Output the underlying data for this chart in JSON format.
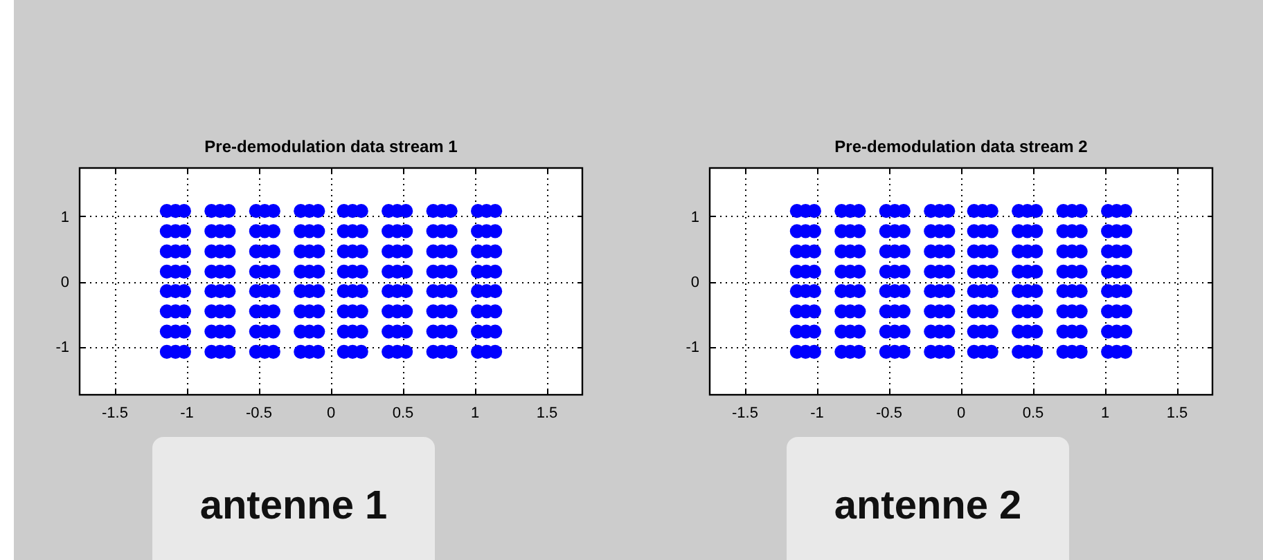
{
  "chart_data": [
    {
      "type": "scatter",
      "title": "Pre-demodulation data stream 1",
      "color": "#0000ff",
      "marker": "circle",
      "grid": true,
      "xlim": [
        -1.75,
        1.75
      ],
      "ylim": [
        -1.75,
        1.75
      ],
      "xticks": [
        -1.5,
        -1,
        -0.5,
        0,
        0.5,
        1,
        1.5
      ],
      "yticks": [
        -1,
        0,
        1
      ],
      "annotations": [
        "antenne 1"
      ],
      "x": [
        -1.14,
        -1.08,
        -1.02,
        -0.83,
        -0.77,
        -0.71,
        -0.52,
        -0.46,
        -0.4,
        -0.21,
        -0.15,
        -0.09,
        0.09,
        0.15,
        0.21,
        0.4,
        0.46,
        0.52,
        0.71,
        0.77,
        0.83,
        1.02,
        1.08,
        1.14,
        -1.14,
        -1.08,
        -1.02,
        -0.83,
        -0.77,
        -0.71,
        -0.52,
        -0.46,
        -0.4,
        -0.21,
        -0.15,
        -0.09,
        0.09,
        0.15,
        0.21,
        0.4,
        0.46,
        0.52,
        0.71,
        0.77,
        0.83,
        1.02,
        1.08,
        1.14,
        -1.14,
        -1.08,
        -1.02,
        -0.83,
        -0.77,
        -0.71,
        -0.52,
        -0.46,
        -0.4,
        -0.21,
        -0.15,
        -0.09,
        0.09,
        0.15,
        0.21,
        0.4,
        0.46,
        0.52,
        0.71,
        0.77,
        0.83,
        1.02,
        1.08,
        1.14,
        -1.14,
        -1.08,
        -1.02,
        -0.83,
        -0.77,
        -0.71,
        -0.52,
        -0.46,
        -0.4,
        -0.21,
        -0.15,
        -0.09,
        0.09,
        0.15,
        0.21,
        0.4,
        0.46,
        0.52,
        0.71,
        0.77,
        0.83,
        1.02,
        1.08,
        1.14,
        -1.14,
        -1.08,
        -1.02,
        -0.83,
        -0.77,
        -0.71,
        -0.52,
        -0.46,
        -0.4,
        -0.21,
        -0.15,
        -0.09,
        0.09,
        0.15,
        0.21,
        0.4,
        0.46,
        0.52,
        0.71,
        0.77,
        0.83,
        1.02,
        1.08,
        1.14,
        -1.14,
        -1.08,
        -1.02,
        -0.83,
        -0.77,
        -0.71,
        -0.52,
        -0.46,
        -0.4,
        -0.21,
        -0.15,
        -0.09,
        0.09,
        0.15,
        0.21,
        0.4,
        0.46,
        0.52,
        0.71,
        0.77,
        0.83,
        1.02,
        1.08,
        1.14,
        -1.14,
        -1.08,
        -1.02,
        -0.83,
        -0.77,
        -0.71,
        -0.52,
        -0.46,
        -0.4,
        -0.21,
        -0.15,
        -0.09,
        0.09,
        0.15,
        0.21,
        0.4,
        0.46,
        0.52,
        0.71,
        0.77,
        0.83,
        1.02,
        1.08,
        1.14,
        -1.14,
        -1.08,
        -1.02,
        -0.83,
        -0.77,
        -0.71,
        -0.52,
        -0.46,
        -0.4,
        -0.21,
        -0.15,
        -0.09,
        0.09,
        0.15,
        0.21,
        0.4,
        0.46,
        0.52,
        0.71,
        0.77,
        0.83,
        1.02,
        1.08,
        1.14
      ],
      "values": [
        1.08,
        1.08,
        1.08,
        1.08,
        1.08,
        1.08,
        1.08,
        1.08,
        1.08,
        1.08,
        1.08,
        1.08,
        1.08,
        1.08,
        1.08,
        1.08,
        1.08,
        1.08,
        1.08,
        1.08,
        1.08,
        1.08,
        1.08,
        1.08,
        0.77,
        0.77,
        0.77,
        0.77,
        0.77,
        0.77,
        0.77,
        0.77,
        0.77,
        0.77,
        0.77,
        0.77,
        0.77,
        0.77,
        0.77,
        0.77,
        0.77,
        0.77,
        0.77,
        0.77,
        0.77,
        0.77,
        0.77,
        0.77,
        0.46,
        0.46,
        0.46,
        0.46,
        0.46,
        0.46,
        0.46,
        0.46,
        0.46,
        0.46,
        0.46,
        0.46,
        0.46,
        0.46,
        0.46,
        0.46,
        0.46,
        0.46,
        0.46,
        0.46,
        0.46,
        0.46,
        0.46,
        0.46,
        0.15,
        0.15,
        0.15,
        0.15,
        0.15,
        0.15,
        0.15,
        0.15,
        0.15,
        0.15,
        0.15,
        0.15,
        0.15,
        0.15,
        0.15,
        0.15,
        0.15,
        0.15,
        0.15,
        0.15,
        0.15,
        0.15,
        0.15,
        0.15,
        -0.15,
        -0.15,
        -0.15,
        -0.15,
        -0.15,
        -0.15,
        -0.15,
        -0.15,
        -0.15,
        -0.15,
        -0.15,
        -0.15,
        -0.15,
        -0.15,
        -0.15,
        -0.15,
        -0.15,
        -0.15,
        -0.15,
        -0.15,
        -0.15,
        -0.15,
        -0.15,
        -0.15,
        -0.46,
        -0.46,
        -0.46,
        -0.46,
        -0.46,
        -0.46,
        -0.46,
        -0.46,
        -0.46,
        -0.46,
        -0.46,
        -0.46,
        -0.46,
        -0.46,
        -0.46,
        -0.46,
        -0.46,
        -0.46,
        -0.46,
        -0.46,
        -0.46,
        -0.46,
        -0.46,
        -0.46,
        -0.77,
        -0.77,
        -0.77,
        -0.77,
        -0.77,
        -0.77,
        -0.77,
        -0.77,
        -0.77,
        -0.77,
        -0.77,
        -0.77,
        -0.77,
        -0.77,
        -0.77,
        -0.77,
        -0.77,
        -0.77,
        -0.77,
        -0.77,
        -0.77,
        -0.77,
        -0.77,
        -0.77,
        -1.08,
        -1.08,
        -1.08,
        -1.08,
        -1.08,
        -1.08,
        -1.08,
        -1.08,
        -1.08,
        -1.08,
        -1.08,
        -1.08,
        -1.08,
        -1.08,
        -1.08,
        -1.08,
        -1.08,
        -1.08,
        -1.08,
        -1.08,
        -1.08,
        -1.08,
        -1.08,
        -1.08
      ]
    },
    {
      "type": "scatter",
      "title": "Pre-demodulation data stream 2",
      "color": "#0000ff",
      "marker": "circle",
      "grid": true,
      "xlim": [
        -1.75,
        1.75
      ],
      "ylim": [
        -1.75,
        1.75
      ],
      "xticks": [
        -1.5,
        -1,
        -0.5,
        0,
        0.5,
        1,
        1.5
      ],
      "yticks": [
        -1,
        0,
        1
      ],
      "annotations": [
        "antenne 2"
      ],
      "x": [
        -1.14,
        -1.08,
        -1.02,
        -0.83,
        -0.77,
        -0.71,
        -0.52,
        -0.46,
        -0.4,
        -0.21,
        -0.15,
        -0.09,
        0.09,
        0.15,
        0.21,
        0.4,
        0.46,
        0.52,
        0.71,
        0.77,
        0.83,
        1.02,
        1.08,
        1.14,
        -1.14,
        -1.08,
        -1.02,
        -0.83,
        -0.77,
        -0.71,
        -0.52,
        -0.46,
        -0.4,
        -0.21,
        -0.15,
        -0.09,
        0.09,
        0.15,
        0.21,
        0.4,
        0.46,
        0.52,
        0.71,
        0.77,
        0.83,
        1.02,
        1.08,
        1.14,
        -1.14,
        -1.08,
        -1.02,
        -0.83,
        -0.77,
        -0.71,
        -0.52,
        -0.46,
        -0.4,
        -0.21,
        -0.15,
        -0.09,
        0.09,
        0.15,
        0.21,
        0.4,
        0.46,
        0.52,
        0.71,
        0.77,
        0.83,
        1.02,
        1.08,
        1.14,
        -1.14,
        -1.08,
        -1.02,
        -0.83,
        -0.77,
        -0.71,
        -0.52,
        -0.46,
        -0.4,
        -0.21,
        -0.15,
        -0.09,
        0.09,
        0.15,
        0.21,
        0.4,
        0.46,
        0.52,
        0.71,
        0.77,
        0.83,
        1.02,
        1.08,
        1.14,
        -1.14,
        -1.08,
        -1.02,
        -0.83,
        -0.77,
        -0.71,
        -0.52,
        -0.46,
        -0.4,
        -0.21,
        -0.15,
        -0.09,
        0.09,
        0.15,
        0.21,
        0.4,
        0.46,
        0.52,
        0.71,
        0.77,
        0.83,
        1.02,
        1.08,
        1.14,
        -1.14,
        -1.08,
        -1.02,
        -0.83,
        -0.77,
        -0.71,
        -0.52,
        -0.46,
        -0.4,
        -0.21,
        -0.15,
        -0.09,
        0.09,
        0.15,
        0.21,
        0.4,
        0.46,
        0.52,
        0.71,
        0.77,
        0.83,
        1.02,
        1.08,
        1.14,
        -1.14,
        -1.08,
        -1.02,
        -0.83,
        -0.77,
        -0.71,
        -0.52,
        -0.46,
        -0.4,
        -0.21,
        -0.15,
        -0.09,
        0.09,
        0.15,
        0.21,
        0.4,
        0.46,
        0.52,
        0.71,
        0.77,
        0.83,
        1.02,
        1.08,
        1.14,
        -1.14,
        -1.08,
        -1.02,
        -0.83,
        -0.77,
        -0.71,
        -0.52,
        -0.46,
        -0.4,
        -0.21,
        -0.15,
        -0.09,
        0.09,
        0.15,
        0.21,
        0.4,
        0.46,
        0.52,
        0.71,
        0.77,
        0.83,
        1.02,
        1.08,
        1.14
      ],
      "values": [
        1.08,
        1.08,
        1.08,
        1.08,
        1.08,
        1.08,
        1.08,
        1.08,
        1.08,
        1.08,
        1.08,
        1.08,
        1.08,
        1.08,
        1.08,
        1.08,
        1.08,
        1.08,
        1.08,
        1.08,
        1.08,
        1.08,
        1.08,
        1.08,
        0.77,
        0.77,
        0.77,
        0.77,
        0.77,
        0.77,
        0.77,
        0.77,
        0.77,
        0.77,
        0.77,
        0.77,
        0.77,
        0.77,
        0.77,
        0.77,
        0.77,
        0.77,
        0.77,
        0.77,
        0.77,
        0.77,
        0.77,
        0.77,
        0.46,
        0.46,
        0.46,
        0.46,
        0.46,
        0.46,
        0.46,
        0.46,
        0.46,
        0.46,
        0.46,
        0.46,
        0.46,
        0.46,
        0.46,
        0.46,
        0.46,
        0.46,
        0.46,
        0.46,
        0.46,
        0.46,
        0.46,
        0.46,
        0.15,
        0.15,
        0.15,
        0.15,
        0.15,
        0.15,
        0.15,
        0.15,
        0.15,
        0.15,
        0.15,
        0.15,
        0.15,
        0.15,
        0.15,
        0.15,
        0.15,
        0.15,
        0.15,
        0.15,
        0.15,
        0.15,
        0.15,
        0.15,
        -0.15,
        -0.15,
        -0.15,
        -0.15,
        -0.15,
        -0.15,
        -0.15,
        -0.15,
        -0.15,
        -0.15,
        -0.15,
        -0.15,
        -0.15,
        -0.15,
        -0.15,
        -0.15,
        -0.15,
        -0.15,
        -0.15,
        -0.15,
        -0.15,
        -0.15,
        -0.15,
        -0.15,
        -0.46,
        -0.46,
        -0.46,
        -0.46,
        -0.46,
        -0.46,
        -0.46,
        -0.46,
        -0.46,
        -0.46,
        -0.46,
        -0.46,
        -0.46,
        -0.46,
        -0.46,
        -0.46,
        -0.46,
        -0.46,
        -0.46,
        -0.46,
        -0.46,
        -0.46,
        -0.46,
        -0.46,
        -0.77,
        -0.77,
        -0.77,
        -0.77,
        -0.77,
        -0.77,
        -0.77,
        -0.77,
        -0.77,
        -0.77,
        -0.77,
        -0.77,
        -0.77,
        -0.77,
        -0.77,
        -0.77,
        -0.77,
        -0.77,
        -0.77,
        -0.77,
        -0.77,
        -0.77,
        -0.77,
        -0.77,
        -1.08,
        -1.08,
        -1.08,
        -1.08,
        -1.08,
        -1.08,
        -1.08,
        -1.08,
        -1.08,
        -1.08,
        -1.08,
        -1.08,
        -1.08,
        -1.08,
        -1.08,
        -1.08,
        -1.08,
        -1.08,
        -1.08,
        -1.08,
        -1.08,
        -1.08,
        -1.08,
        -1.08
      ]
    }
  ]
}
